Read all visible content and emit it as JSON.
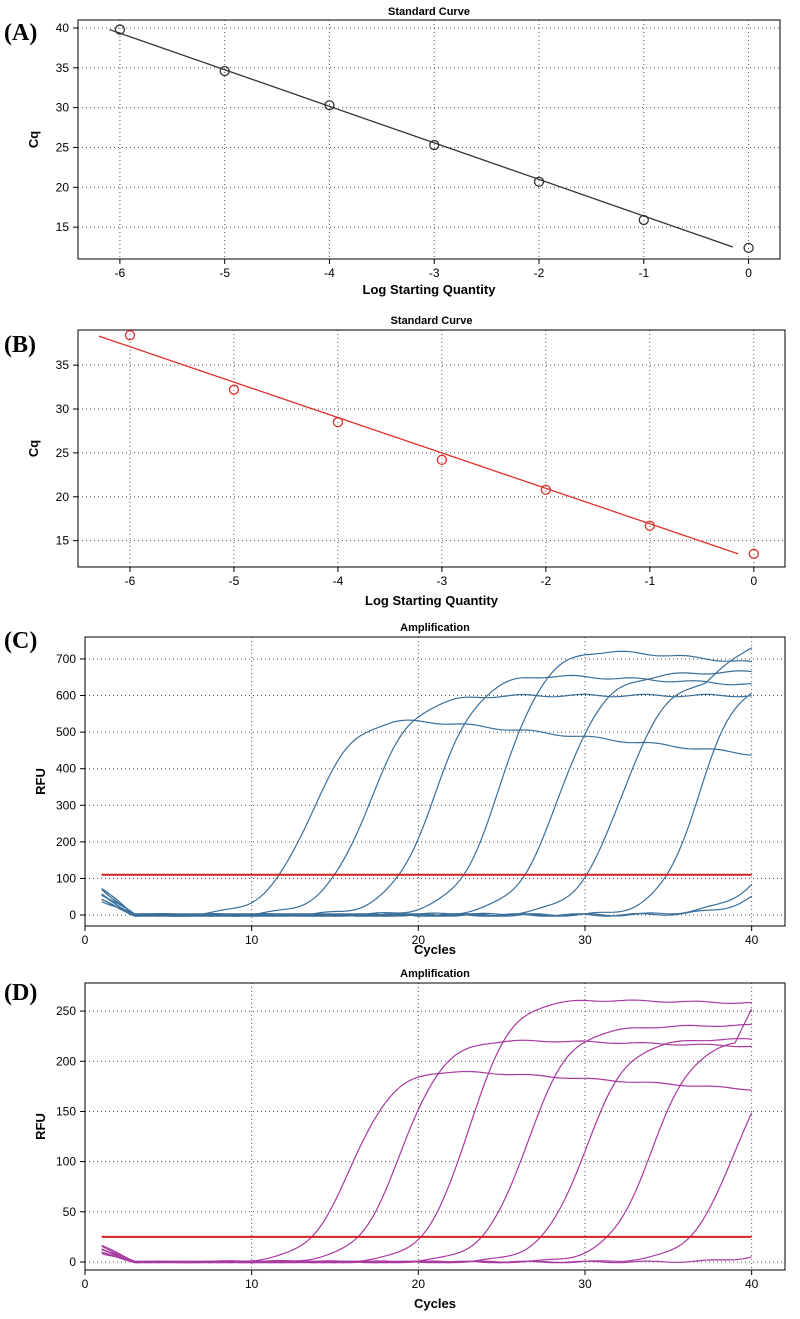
{
  "chart_data": [
    {
      "panel_label": "(A)",
      "type": "scatter",
      "title": "Standard Curve",
      "xlabel": "Log Starting Quantity",
      "ylabel": "Cq",
      "xlim": [
        -6.4,
        0.3
      ],
      "ylim": [
        11,
        41
      ],
      "xticks": [
        -6,
        -5,
        -4,
        -3,
        -2,
        -1,
        0
      ],
      "yticks": [
        15,
        20,
        25,
        30,
        35,
        40
      ],
      "grid": true,
      "color": "#333333",
      "points": [
        {
          "x": -6,
          "y": 39.8
        },
        {
          "x": -5,
          "y": 34.6
        },
        {
          "x": -4,
          "y": 30.3
        },
        {
          "x": -3,
          "y": 25.3
        },
        {
          "x": -2,
          "y": 20.7
        },
        {
          "x": -1,
          "y": 15.9
        },
        {
          "x": 0,
          "y": 12.4
        }
      ],
      "fit_line": {
        "x": [
          -6.1,
          -0.15
        ],
        "y": [
          39.8,
          12.5
        ]
      }
    },
    {
      "panel_label": "(B)",
      "type": "scatter",
      "title": "Standard Curve",
      "xlabel": "Log Starting Quantity",
      "ylabel": "Cq",
      "xlim": [
        -6.5,
        0.3
      ],
      "ylim": [
        12,
        39
      ],
      "xticks": [
        -6,
        -5,
        -4,
        -3,
        -2,
        -1,
        0
      ],
      "yticks": [
        15,
        20,
        25,
        30,
        35
      ],
      "grid": true,
      "color": "#e0302a",
      "points": [
        {
          "x": -6,
          "y": 38.4
        },
        {
          "x": -5,
          "y": 32.2
        },
        {
          "x": -4,
          "y": 28.5
        },
        {
          "x": -3,
          "y": 24.2
        },
        {
          "x": -2,
          "y": 20.8
        },
        {
          "x": -1,
          "y": 16.7
        },
        {
          "x": 0,
          "y": 13.5
        }
      ],
      "fit_line": {
        "x": [
          -6.3,
          -0.15
        ],
        "y": [
          38.3,
          13.5
        ]
      }
    },
    {
      "panel_label": "(C)",
      "type": "line",
      "title": "Amplification",
      "xlabel": "Cycles",
      "ylabel": "RFU",
      "xlim": [
        0,
        42
      ],
      "ylim": [
        -30,
        760
      ],
      "xticks": [
        0,
        10,
        20,
        30,
        40
      ],
      "yticks": [
        0,
        100,
        200,
        300,
        400,
        500,
        600,
        700
      ],
      "grid": true,
      "color": "#3a6f9a",
      "threshold": 110,
      "threshold_color": "#d62020",
      "curves": [
        {
          "ct": 13.5,
          "plateau": 540,
          "end": 440,
          "k": 0.75
        },
        {
          "ct": 17.0,
          "plateau": 600,
          "end": 600,
          "k": 0.75
        },
        {
          "ct": 21.0,
          "plateau": 660,
          "end": 630,
          "k": 0.75
        },
        {
          "ct": 25.0,
          "plateau": 730,
          "end": 690,
          "k": 0.75
        },
        {
          "ct": 28.5,
          "plateau": 660,
          "end": 665,
          "k": 0.75
        },
        {
          "ct": 32.2,
          "plateau": 650,
          "end": 735,
          "k": 0.75
        },
        {
          "ct": 36.8,
          "plateau": 650,
          "end": 650,
          "k": 0.85
        },
        {
          "ct": 43.0,
          "plateau": 600,
          "end": 600,
          "k": 0.6
        },
        {
          "ct": 44.0,
          "plateau": 600,
          "end": 600,
          "k": 0.6
        }
      ]
    },
    {
      "panel_label": "(D)",
      "type": "line",
      "title": "Amplification",
      "xlabel": "Cycles",
      "ylabel": "RFU",
      "xlim": [
        0,
        42
      ],
      "ylim": [
        -8,
        278
      ],
      "xticks": [
        0,
        10,
        20,
        30,
        40
      ],
      "yticks": [
        0,
        50,
        100,
        150,
        200,
        250
      ],
      "grid": true,
      "color": "#a83aa0",
      "threshold": 25,
      "threshold_color": "#d62020",
      "curves": [
        {
          "ct": 16.0,
          "plateau": 192,
          "end": 172,
          "k": 0.78
        },
        {
          "ct": 19.0,
          "plateau": 222,
          "end": 215,
          "k": 0.78
        },
        {
          "ct": 23.0,
          "plateau": 262,
          "end": 258,
          "k": 0.78
        },
        {
          "ct": 26.5,
          "plateau": 234,
          "end": 236,
          "k": 0.78
        },
        {
          "ct": 30.0,
          "plateau": 222,
          "end": 222,
          "k": 0.78
        },
        {
          "ct": 34.0,
          "plateau": 222,
          "end": 255,
          "k": 0.78
        },
        {
          "ct": 39.0,
          "plateau": 220,
          "end": 220,
          "k": 0.75
        },
        {
          "ct": 46.0,
          "plateau": 200,
          "end": 200,
          "k": 0.6
        }
      ]
    }
  ]
}
